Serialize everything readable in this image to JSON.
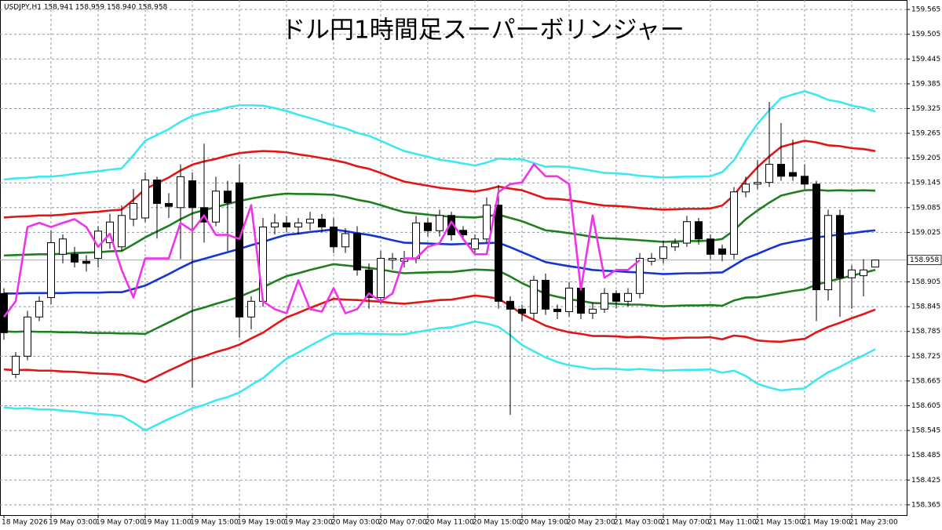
{
  "chart_data": {
    "type": "candlestick",
    "title": "ドル円1時間足スーパーボリンジャー",
    "symbol_info": "USDJPY,H1  158.941 158.959 158.940 158.958",
    "current_price": 158.958,
    "categories": [
      "18 May 2026",
      null,
      null,
      null,
      "19 May 03:00",
      null,
      null,
      null,
      "19 May 07:00",
      null,
      null,
      null,
      "19 May 11:00",
      null,
      null,
      null,
      "19 May 15:00",
      null,
      null,
      null,
      "19 May 19:00",
      null,
      null,
      null,
      "19 May 23:00",
      null,
      null,
      null,
      "20 May 03:00",
      null,
      null,
      null,
      "20 May 07:00",
      null,
      null,
      null,
      "20 May 11:00",
      null,
      null,
      null,
      "20 May 15:00",
      null,
      null,
      null,
      "20 May 19:00",
      null,
      null,
      null,
      "20 May 23:00",
      null,
      null,
      null,
      "21 May 03:00",
      null,
      null,
      null,
      "21 May 07:00",
      null,
      null,
      null,
      "21 May 11:00",
      null,
      null,
      null,
      "21 May 15:00",
      null,
      null,
      null,
      "21 May 19:00",
      null,
      null,
      null,
      "21 May 23:00",
      null,
      null
    ],
    "open": [
      158.877,
      158.681,
      158.725,
      158.82,
      158.867,
      158.972,
      158.972,
      158.955,
      158.962,
      159.0,
      158.99,
      159.057,
      159.06,
      159.152,
      159.095,
      159.085,
      159.15,
      159.085,
      159.05,
      159.125,
      159.145,
      158.82,
      158.858,
      159.038,
      159.048,
      159.038,
      159.048,
      159.057,
      159.038,
      158.99,
      159.022,
      158.934,
      158.867,
      158.958,
      158.955,
      158.962,
      159.048,
      159.029,
      159.066,
      159.03,
      158.985,
      159.009,
      159.091,
      158.858,
      158.839,
      158.829,
      158.909,
      158.839,
      158.833,
      158.89,
      158.829,
      158.839,
      158.877,
      158.858,
      158.877,
      158.955,
      158.962,
      158.99,
      158.999,
      159.051,
      159.009,
      158.985,
      158.972,
      159.123,
      159.142,
      159.146,
      159.19,
      159.17,
      159.161,
      159.142,
      158.886,
      159.066,
      158.915,
      158.92,
      158.941
    ],
    "high": [
      158.89,
      158.735,
      158.835,
      158.87,
      159.03,
      159.02,
      158.99,
      158.97,
      159.04,
      159.07,
      159.09,
      159.13,
      159.17,
      159.16,
      159.12,
      159.19,
      159.17,
      159.24,
      159.16,
      159.15,
      159.19,
      158.87,
      159.06,
      159.07,
      159.065,
      159.06,
      159.075,
      159.07,
      159.06,
      159.035,
      159.04,
      158.95,
      158.98,
      158.975,
      158.98,
      159.065,
      159.06,
      159.08,
      159.075,
      159.04,
      159.02,
      159.11,
      159.14,
      158.87,
      158.85,
      158.92,
      158.925,
      158.85,
      158.905,
      158.9,
      158.855,
      158.89,
      158.885,
      158.89,
      158.975,
      158.975,
      159.005,
      159.01,
      159.065,
      159.06,
      159.02,
      158.995,
      159.135,
      159.16,
      159.2,
      159.341,
      159.29,
      159.25,
      159.19,
      159.15,
      159.08,
      159.08,
      158.945,
      158.96,
      158.959
    ],
    "low": [
      158.765,
      158.672,
      158.715,
      158.81,
      158.85,
      158.95,
      158.94,
      158.93,
      158.94,
      158.985,
      158.98,
      159.04,
      159.05,
      159.01,
      159.06,
      158.96,
      158.649,
      159.0,
      159.04,
      158.98,
      158.77,
      158.79,
      158.845,
      159.02,
      159.025,
      159.02,
      159.03,
      159.025,
      158.975,
      158.975,
      158.92,
      158.84,
      158.85,
      158.935,
      158.94,
      158.95,
      159.015,
      159.015,
      159.005,
      159.005,
      158.975,
      159.0,
      158.84,
      158.583,
      158.81,
      158.815,
      158.825,
      158.815,
      158.82,
      158.815,
      158.815,
      158.83,
      158.84,
      158.845,
      158.865,
      158.945,
      158.95,
      158.98,
      158.99,
      158.995,
      158.96,
      158.955,
      158.96,
      159.11,
      159.13,
      159.135,
      159.15,
      159.15,
      159.13,
      158.81,
      158.86,
      158.82,
      158.84,
      158.87,
      158.94
    ],
    "close": [
      158.782,
      158.725,
      158.82,
      158.858,
      159.0,
      159.009,
      158.953,
      158.95,
      159.028,
      159.05,
      159.066,
      159.095,
      159.152,
      159.095,
      159.088,
      159.16,
      159.085,
      159.05,
      159.125,
      159.097,
      158.82,
      158.858,
      159.038,
      159.048,
      159.038,
      159.048,
      159.057,
      159.038,
      158.99,
      159.022,
      158.934,
      158.867,
      158.962,
      158.962,
      158.962,
      159.048,
      159.029,
      159.066,
      159.019,
      159.019,
      159.009,
      159.091,
      158.858,
      158.839,
      158.829,
      158.909,
      158.839,
      158.833,
      158.89,
      158.829,
      158.839,
      158.877,
      158.858,
      158.877,
      158.962,
      158.962,
      158.99,
      158.999,
      159.051,
      159.009,
      158.972,
      158.972,
      159.123,
      159.142,
      159.146,
      159.19,
      159.161,
      159.161,
      159.142,
      158.886,
      159.066,
      158.915,
      158.934,
      158.934,
      158.958
    ],
    "up_color": "#ffffff",
    "down_color": "#000000",
    "series": [
      {
        "color": "#3ee8f2",
        "values": [
          159.153,
          159.156,
          159.157,
          159.16,
          159.16,
          159.163,
          159.167,
          159.17,
          159.173,
          159.177,
          159.18,
          159.212,
          159.247,
          159.261,
          159.275,
          159.293,
          159.307,
          159.315,
          159.32,
          159.328,
          159.333,
          159.333,
          159.332,
          159.326,
          159.319,
          159.31,
          159.302,
          159.293,
          159.284,
          159.277,
          159.266,
          159.259,
          159.247,
          159.234,
          159.222,
          159.215,
          159.208,
          159.201,
          159.197,
          159.192,
          159.187,
          159.194,
          159.204,
          159.202,
          159.202,
          159.193,
          159.184,
          159.185,
          159.183,
          159.179,
          159.174,
          159.169,
          159.168,
          159.166,
          159.162,
          159.16,
          159.158,
          159.159,
          159.16,
          159.16,
          159.161,
          159.171,
          159.2,
          159.247,
          159.288,
          159.321,
          159.35,
          159.359,
          159.367,
          159.358,
          159.346,
          159.341,
          159.332,
          159.327,
          159.318
        ]
      },
      {
        "color": "#e31414",
        "values": [
          159.061,
          159.063,
          159.064,
          159.066,
          159.066,
          159.068,
          159.071,
          159.073,
          159.075,
          159.078,
          159.08,
          159.104,
          159.13,
          159.144,
          159.158,
          159.175,
          159.189,
          159.197,
          159.203,
          159.211,
          159.217,
          159.22,
          159.222,
          159.221,
          159.219,
          159.214,
          159.21,
          159.205,
          159.2,
          159.194,
          159.185,
          159.179,
          159.169,
          159.158,
          159.148,
          159.143,
          159.138,
          159.133,
          159.13,
          159.127,
          159.124,
          159.129,
          159.136,
          159.131,
          159.127,
          159.117,
          159.107,
          159.106,
          159.103,
          159.099,
          159.094,
          159.09,
          159.089,
          159.087,
          159.084,
          159.082,
          159.08,
          159.081,
          159.082,
          159.082,
          159.083,
          159.09,
          159.115,
          159.152,
          159.183,
          159.209,
          159.232,
          159.24,
          159.247,
          159.243,
          159.236,
          159.234,
          159.229,
          159.227,
          159.222
        ]
      },
      {
        "color": "#1f7f1f",
        "values": [
          158.969,
          158.97,
          158.971,
          158.972,
          158.972,
          158.973,
          158.975,
          158.976,
          158.977,
          158.979,
          158.98,
          158.996,
          159.013,
          159.027,
          159.041,
          159.057,
          159.071,
          159.079,
          159.086,
          159.094,
          159.101,
          159.107,
          159.112,
          159.116,
          159.119,
          159.118,
          159.118,
          159.117,
          159.116,
          159.111,
          159.104,
          159.099,
          159.091,
          159.082,
          159.074,
          159.071,
          159.068,
          159.065,
          159.063,
          159.062,
          159.061,
          159.064,
          159.068,
          159.06,
          159.052,
          159.041,
          159.03,
          159.027,
          159.023,
          159.019,
          159.014,
          159.011,
          159.01,
          159.008,
          159.006,
          159.004,
          159.002,
          159.003,
          159.004,
          159.004,
          159.005,
          159.009,
          159.03,
          159.057,
          159.078,
          159.097,
          159.114,
          159.121,
          159.127,
          159.128,
          159.126,
          159.127,
          159.126,
          159.127,
          159.126
        ]
      },
      {
        "color": "#1434d4",
        "values": [
          158.877,
          158.877,
          158.878,
          158.878,
          158.878,
          158.878,
          158.879,
          158.879,
          158.879,
          158.88,
          158.88,
          158.888,
          158.896,
          158.91,
          158.924,
          158.939,
          158.953,
          158.961,
          158.969,
          158.977,
          158.985,
          158.994,
          159.002,
          159.011,
          159.019,
          159.022,
          159.026,
          159.029,
          159.032,
          159.028,
          159.023,
          159.019,
          159.013,
          159.006,
          159.0,
          158.999,
          158.998,
          158.997,
          158.996,
          158.997,
          158.998,
          158.999,
          159.0,
          158.989,
          158.977,
          158.965,
          158.953,
          158.948,
          158.943,
          158.939,
          158.934,
          158.932,
          158.931,
          158.929,
          158.928,
          158.926,
          158.924,
          158.925,
          158.926,
          158.926,
          158.927,
          158.928,
          158.945,
          158.962,
          158.973,
          158.985,
          158.996,
          159.002,
          159.007,
          159.013,
          159.016,
          159.02,
          159.023,
          159.027,
          159.03
        ]
      },
      {
        "color": "#1f7f1f",
        "values": [
          158.785,
          158.784,
          158.785,
          158.784,
          158.784,
          158.783,
          158.783,
          158.782,
          158.781,
          158.781,
          158.78,
          158.78,
          158.779,
          158.793,
          158.807,
          158.821,
          158.835,
          158.843,
          158.852,
          158.86,
          158.869,
          158.881,
          158.892,
          158.906,
          158.919,
          158.926,
          158.934,
          158.941,
          158.948,
          158.945,
          158.942,
          158.939,
          158.935,
          158.93,
          158.926,
          158.927,
          158.928,
          158.929,
          158.929,
          158.932,
          158.935,
          158.934,
          158.932,
          158.918,
          158.902,
          158.889,
          158.876,
          158.869,
          158.863,
          158.859,
          158.854,
          158.853,
          158.852,
          158.85,
          158.85,
          158.848,
          158.846,
          158.847,
          158.848,
          158.848,
          158.849,
          158.847,
          158.86,
          158.867,
          158.868,
          158.873,
          158.878,
          158.883,
          158.887,
          158.898,
          158.906,
          158.913,
          158.92,
          158.927,
          158.934
        ]
      },
      {
        "color": "#e31414",
        "values": [
          158.693,
          158.691,
          158.692,
          158.69,
          158.69,
          158.688,
          158.687,
          158.685,
          158.683,
          158.682,
          158.68,
          158.672,
          158.662,
          158.676,
          158.69,
          158.703,
          158.717,
          158.725,
          158.735,
          158.743,
          158.753,
          158.768,
          158.782,
          158.801,
          158.819,
          158.83,
          158.842,
          158.853,
          158.864,
          158.862,
          158.861,
          158.859,
          158.857,
          158.854,
          158.852,
          158.855,
          158.858,
          158.861,
          158.862,
          158.867,
          158.872,
          158.869,
          158.864,
          158.847,
          158.827,
          158.813,
          158.799,
          158.79,
          158.783,
          158.779,
          158.774,
          158.774,
          158.773,
          158.771,
          158.772,
          158.77,
          158.768,
          158.769,
          158.77,
          158.77,
          158.771,
          158.766,
          158.775,
          158.772,
          158.763,
          158.761,
          158.76,
          158.764,
          158.767,
          158.783,
          158.796,
          158.806,
          158.817,
          158.827,
          158.838
        ]
      },
      {
        "color": "#3ee8f2",
        "values": [
          158.601,
          158.598,
          158.599,
          158.596,
          158.596,
          158.593,
          158.591,
          158.588,
          158.585,
          158.583,
          158.58,
          158.564,
          158.545,
          158.559,
          158.573,
          158.585,
          158.599,
          158.607,
          158.618,
          158.626,
          158.637,
          158.655,
          158.672,
          158.696,
          158.719,
          158.734,
          158.75,
          158.765,
          158.78,
          158.779,
          158.78,
          158.779,
          158.779,
          158.778,
          158.778,
          158.783,
          158.788,
          158.793,
          158.795,
          158.802,
          158.809,
          158.804,
          158.796,
          158.776,
          158.752,
          158.737,
          158.722,
          158.711,
          158.703,
          158.699,
          158.694,
          158.695,
          158.694,
          158.692,
          158.694,
          158.692,
          158.69,
          158.691,
          158.692,
          158.692,
          158.693,
          158.685,
          158.69,
          158.677,
          158.658,
          158.649,
          158.642,
          158.645,
          158.647,
          158.668,
          158.686,
          158.699,
          158.714,
          158.727,
          158.742
        ]
      },
      {
        "color": "#f032ec",
        "values": [
          158.82,
          158.858,
          159.038,
          159.048,
          159.038,
          159.048,
          159.057,
          159.038,
          158.99,
          159.022,
          158.934,
          158.867,
          158.962,
          158.962,
          158.962,
          159.048,
          159.029,
          159.066,
          159.019,
          159.019,
          159.009,
          159.091,
          158.858,
          158.839,
          158.829,
          158.909,
          158.839,
          158.833,
          158.89,
          158.829,
          158.839,
          158.877,
          158.858,
          158.877,
          158.962,
          158.962,
          158.99,
          158.999,
          159.051,
          159.009,
          158.972,
          158.972,
          159.123,
          159.142,
          159.146,
          159.19,
          159.161,
          159.161,
          159.142,
          158.886,
          159.066,
          158.915,
          158.934,
          158.934,
          158.958,
          null,
          null,
          null,
          null,
          null,
          null,
          null,
          null,
          null,
          null,
          null,
          null,
          null,
          null,
          null,
          null,
          null,
          null,
          null,
          null
        ]
      }
    ],
    "ylim": [
      158.34,
      159.588
    ],
    "yticks": [
      159.565,
      159.505,
      159.445,
      159.385,
      159.325,
      159.265,
      159.205,
      159.145,
      159.085,
      159.025,
      158.905,
      158.845,
      158.785,
      158.725,
      158.665,
      158.605,
      158.545,
      158.485,
      158.425,
      158.365
    ],
    "grid": true
  }
}
